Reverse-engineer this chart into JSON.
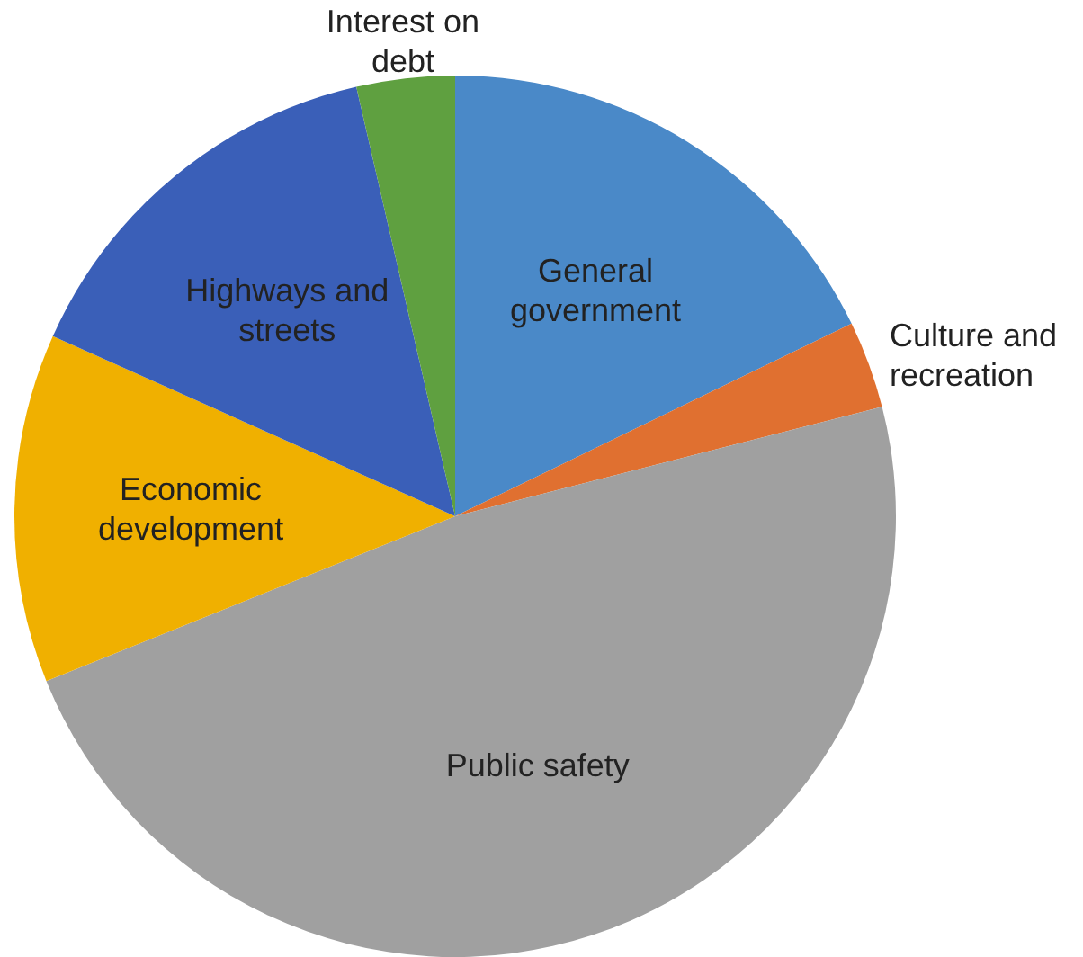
{
  "chart_data": {
    "type": "pie",
    "categories": [
      "General government",
      "Culture and recreation",
      "Public safety",
      "Economic development",
      "Highways and streets",
      "Interest on debt"
    ],
    "values": [
      17.8,
      3.2,
      47.9,
      12.8,
      14.7,
      3.6
    ],
    "colors": [
      "#4a89c8",
      "#e07030",
      "#a0a0a0",
      "#f0b000",
      "#3a5fb8",
      "#5fa040"
    ],
    "data_labels": false,
    "legend": false
  }
}
